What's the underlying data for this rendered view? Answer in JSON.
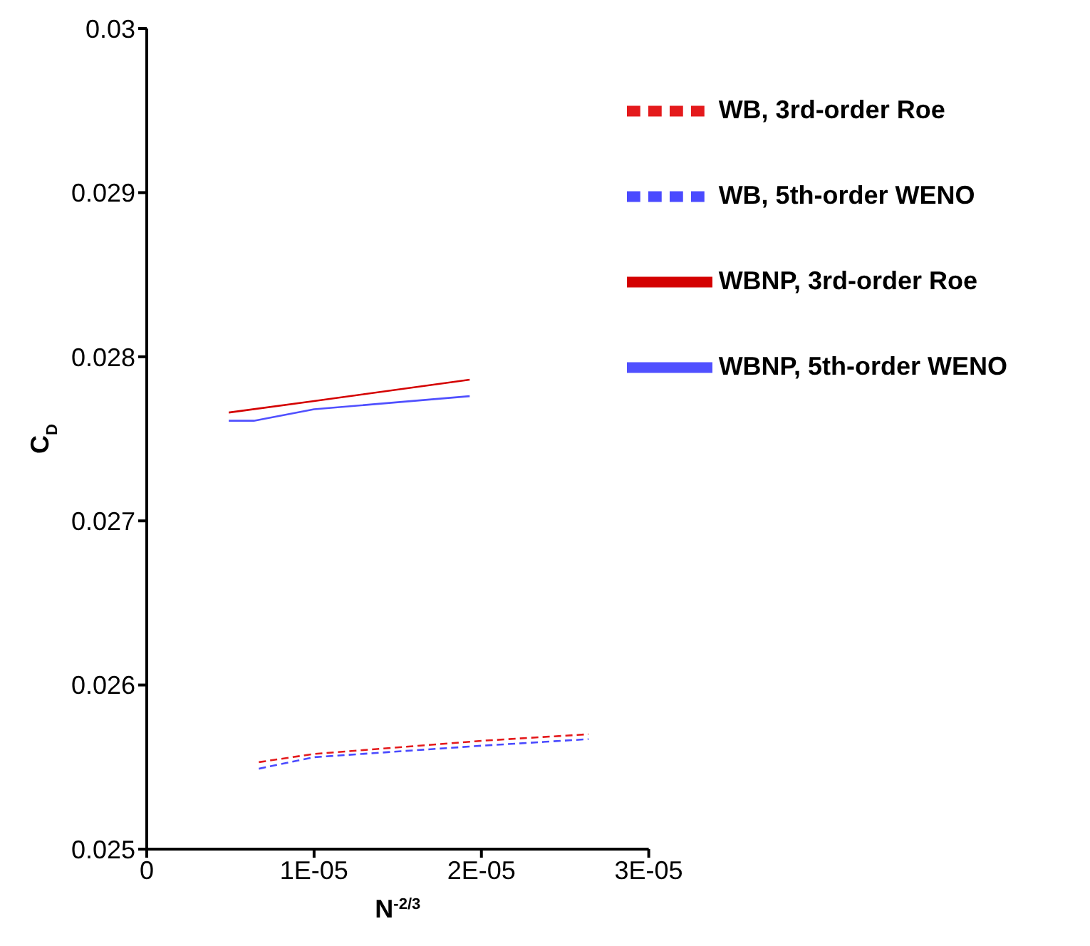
{
  "chart_data": {
    "type": "line",
    "xlabel": "N$^{-2/3}$",
    "ylabel": "C$_{D}$",
    "xlim": [
      0,
      3e-05
    ],
    "xticks": [
      0,
      {
        "value": 1e-05,
        "label": "1E-05"
      },
      {
        "value": 2e-05,
        "label": "2E-05"
      },
      {
        "value": 3e-05,
        "label": "3E-05"
      }
    ],
    "ylim": [
      0.025,
      0.03
    ],
    "yticks": [
      0.025,
      0.026,
      0.027,
      0.028,
      0.029,
      0.03
    ],
    "grid": false,
    "legend": "top right",
    "marker": "none",
    "series": [
      {
        "name": "WB, 3rd-order Roe",
        "color": "#e41a1c",
        "line_style": "dashed",
        "x": [
          6.7e-06,
          1e-05,
          2e-05,
          2.64e-05
        ],
        "values": [
          0.02553,
          0.02558,
          0.02566,
          0.0257
        ]
      },
      {
        "name": "WB, 5th-order WENO",
        "color": "#4a4aff",
        "line_style": "dashed",
        "x": [
          6.7e-06,
          1e-05,
          2e-05,
          2.64e-05
        ],
        "values": [
          0.02549,
          0.02556,
          0.02563,
          0.02567
        ]
      },
      {
        "name": "WBNP, 3rd-order Roe",
        "color": "#d40000",
        "line_style": "solid",
        "x": [
          4.9e-06,
          1e-05,
          1.93e-05
        ],
        "values": [
          0.02766,
          0.02773,
          0.02786
        ]
      },
      {
        "name": "WBNP, 5th-order WENO",
        "color": "#5050ff",
        "line_style": "solid",
        "x": [
          4.9e-06,
          6.4e-06,
          1e-05,
          1.93e-05
        ],
        "values": [
          0.02761,
          0.02761,
          0.02768,
          0.02776
        ]
      }
    ]
  }
}
